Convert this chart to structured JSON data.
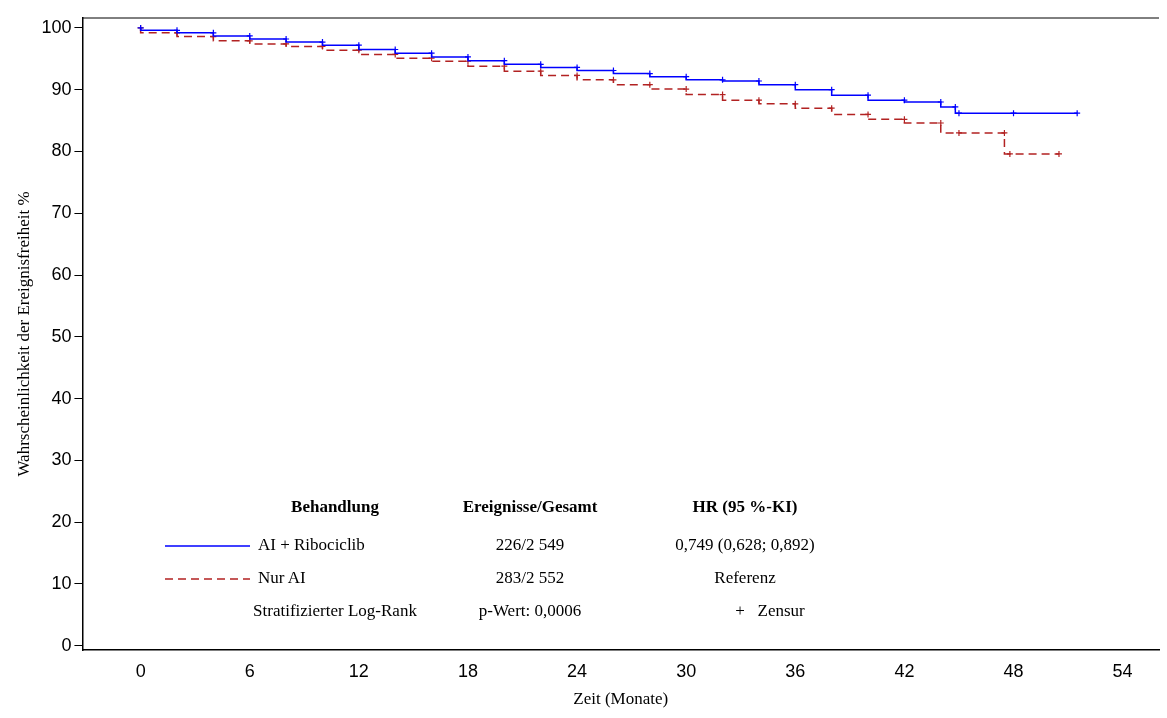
{
  "chart_data": {
    "type": "step",
    "xlabel": "Zeit (Monate)",
    "ylabel": "Wahrscheinlichkeit der Ereignisfreiheit %",
    "xlim": [
      -3.2,
      56
    ],
    "xticks": [
      0,
      6,
      12,
      18,
      24,
      30,
      36,
      42,
      48,
      54
    ],
    "ylim": [
      -0.7,
      101.6
    ],
    "yticks": [
      0,
      10,
      20,
      30,
      40,
      50,
      60,
      70,
      80,
      90,
      100
    ],
    "grid": false,
    "legend": "bottom left",
    "marker": "cross",
    "series": [
      {
        "name": "AI + Ribociclib",
        "color": "#0000ff",
        "line_style": "solid",
        "x": [
          0,
          2,
          4,
          6,
          8,
          10,
          12,
          14,
          16,
          18,
          20,
          22,
          24,
          26,
          28,
          30,
          32,
          34,
          36,
          38,
          40,
          42,
          44,
          44.8,
          45,
          48,
          51.5
        ],
        "values": [
          100,
          99.6,
          99.2,
          98.7,
          98.2,
          97.7,
          97.2,
          96.5,
          95.9,
          95.3,
          94.7,
          94.1,
          93.6,
          93.1,
          92.6,
          92.1,
          91.6,
          91.4,
          90.8,
          90,
          89.1,
          88.3,
          88,
          87.2,
          86.2,
          86.2,
          86.2
        ]
      },
      {
        "name": "Nur AI",
        "color": "#b22222",
        "line_style": "dashed",
        "x": [
          0,
          2,
          4,
          6,
          8,
          10,
          12,
          14,
          16,
          18,
          20,
          22,
          24,
          26,
          28,
          30,
          32,
          34,
          36,
          38,
          40,
          42,
          44,
          45,
          47.5,
          47.8,
          50.5
        ],
        "values": [
          100,
          99.2,
          98.6,
          97.9,
          97.4,
          97,
          96.4,
          95.7,
          95.1,
          94.6,
          93.8,
          93,
          92.3,
          91.6,
          90.8,
          90.1,
          89.2,
          88.3,
          87.7,
          87,
          86,
          85.2,
          84.6,
          83,
          83,
          79.6,
          79.6
        ]
      }
    ],
    "annotations": [
      "Behandlung",
      "Ereignisse/Gesamt",
      "HR (95 %-KI)",
      "226/2 549",
      "0,749 (0,628; 0,892)",
      "283/2 552",
      "Referenz",
      "Stratifizierter Log-Rank",
      "p-Wert: 0,0006",
      "+   Zensur"
    ]
  }
}
